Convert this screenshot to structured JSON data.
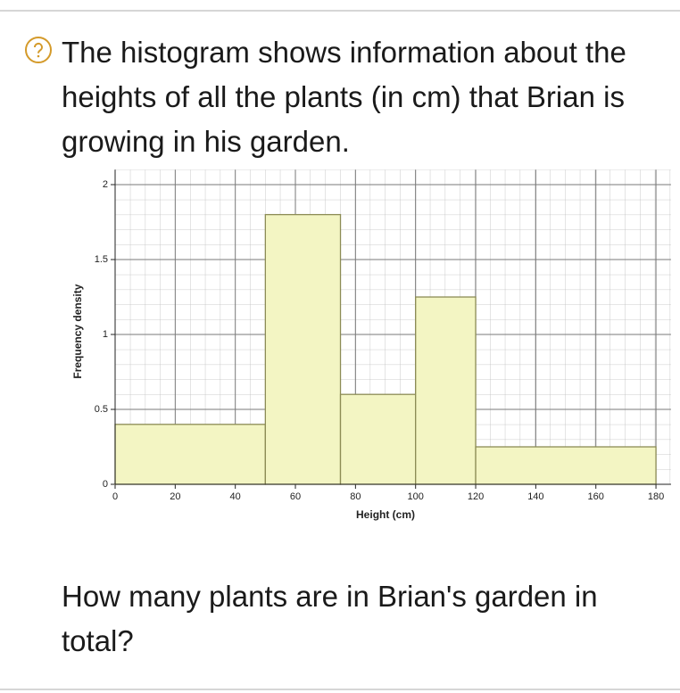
{
  "question": "The histogram shows information about the heights of all the plants (in cm) that Brian is growing in his garden.",
  "prompt": "How many plants are in Brian's garden in total?",
  "chart_data": {
    "type": "histogram",
    "xlabel": "Height (cm)",
    "ylabel": "Frequency density",
    "bins": [
      0,
      50,
      75,
      100,
      120,
      180
    ],
    "counts": [
      0.4,
      1.8,
      0.6,
      1.25,
      0.25
    ],
    "color": "#f3f5c3",
    "xlim": [
      0,
      185
    ],
    "ylim": [
      0,
      2.1
    ],
    "xticks": [
      0,
      20,
      40,
      60,
      80,
      100,
      120,
      140,
      160,
      180
    ],
    "yticks": [
      0,
      0.5,
      1,
      1.5,
      2
    ],
    "grid": true
  }
}
